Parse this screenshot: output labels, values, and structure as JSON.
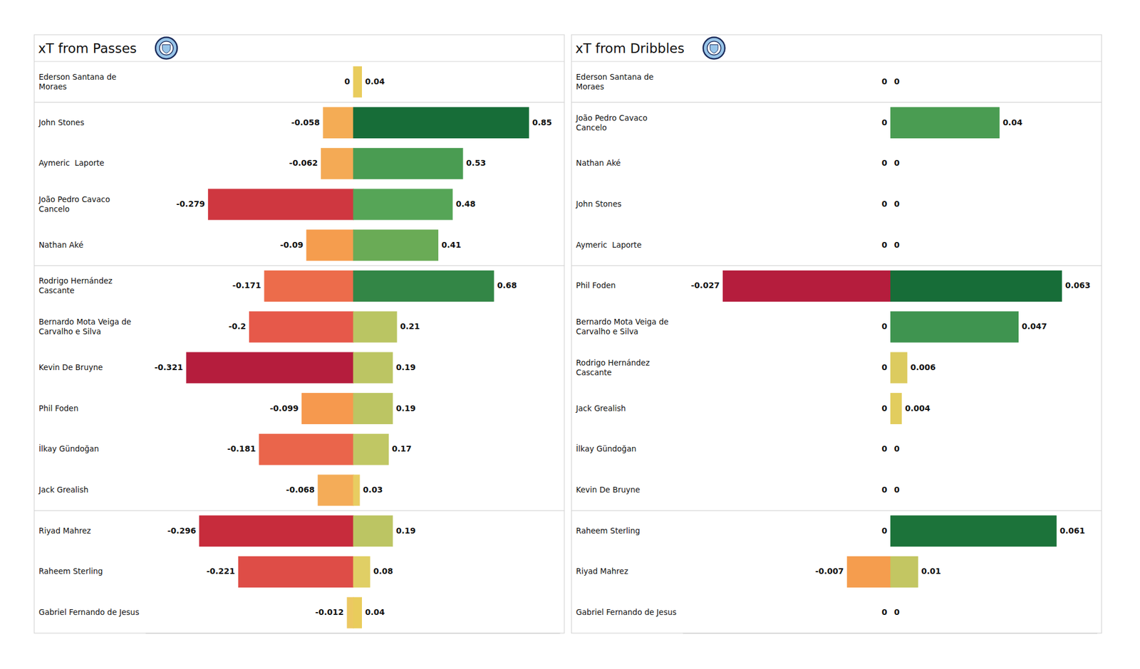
{
  "chart_data": [
    {
      "type": "bar",
      "title": "xT from Passes",
      "orientation": "horizontal",
      "data_labels": true,
      "tick_labels": "y",
      "categories": [
        "Ederson Santana de Moraes",
        "John Stones",
        "Aymeric  Laporte",
        "João Pedro Cavaco Cancelo",
        "Nathan Aké",
        "Rodrigo Hernández Cascante",
        "Bernardo Mota Veiga de Carvalho e Silva",
        "Kevin De Bruyne",
        "Phil Foden",
        "İlkay Gündoğan",
        "Jack Grealish",
        "Riyad Mahrez",
        "Raheem Sterling",
        "Gabriel Fernando de Jesus"
      ],
      "xlim": [
        -0.4,
        1.0
      ],
      "series": [
        {
          "values": [
            0,
            -0.058,
            -0.062,
            -0.279,
            -0.09,
            -0.171,
            -0.2,
            -0.321,
            -0.099,
            -0.181,
            -0.068,
            -0.296,
            -0.221,
            -0.012
          ],
          "colors": [
            "#e9cc5c",
            "#f4ac55",
            "#f4aa55",
            "#cf3740",
            "#f59d4e",
            "#ec6c4b",
            "#e6594a",
            "#b51d3d",
            "#f6994e",
            "#ea654b",
            "#f4ac58",
            "#c72c3c",
            "#de4d47",
            "#ecc862"
          ]
        },
        {
          "values": [
            0.04,
            0.85,
            0.53,
            0.48,
            0.41,
            0.68,
            0.21,
            0.19,
            0.19,
            0.17,
            0.03,
            0.19,
            0.08,
            0.04
          ],
          "colors": [
            "#e9cc5c",
            "#176d38",
            "#4a9c52",
            "#56a557",
            "#6aab56",
            "#338646",
            "#bac563",
            "#bcc563",
            "#bcc563",
            "#c0c764",
            "#e8cd61",
            "#bcc563",
            "#e0cf65",
            "#e9cc5c"
          ]
        }
      ]
    },
    {
      "type": "bar",
      "title": "xT from Dribbles",
      "orientation": "horizontal",
      "data_labels": true,
      "tick_labels": "y",
      "categories": [
        "Ederson Santana de Moraes",
        "João Pedro Cavaco Cancelo",
        "Nathan Aké",
        "John Stones",
        "Aymeric  Laporte",
        "Phil Foden",
        "Bernardo Mota Veiga de Carvalho e Silva",
        "Rodrigo Hernández Cascante",
        "Jack Grealish",
        "İlkay Gündoğan",
        "Kevin De Bruyne",
        "Raheem Sterling",
        "Riyad Mahrez",
        "Gabriel Fernando de Jesus"
      ],
      "xlim": [
        -0.0335,
        0.076
      ],
      "series": [
        {
          "values": [
            0,
            0,
            0,
            0,
            0,
            -0.027,
            0,
            0,
            0,
            0,
            0,
            0,
            -0.007,
            0
          ],
          "colors": [
            "#e9d45d",
            "#e9d45d",
            "#e9d45d",
            "#e9d45d",
            "#e9d45d",
            "#b51d3d",
            "#e9d45d",
            "#e9d45d",
            "#e9d45d",
            "#e9d45d",
            "#e9d45d",
            "#e9d45d",
            "#f59d4e",
            "#e9d45d"
          ]
        },
        {
          "values": [
            0,
            0.04,
            0,
            0,
            0,
            0.063,
            0.047,
            0.006,
            0.004,
            0,
            0,
            0.061,
            0.01,
            0
          ],
          "colors": [
            "#e9d45d",
            "#4a9c52",
            "#e9d45d",
            "#e9d45d",
            "#e9d45d",
            "#176d38",
            "#3f9450",
            "#dccb5f",
            "#e2cd5e",
            "#e9d45d",
            "#e9d45d",
            "#1c733a",
            "#c3c662",
            "#e9d45d"
          ]
        }
      ]
    }
  ]
}
